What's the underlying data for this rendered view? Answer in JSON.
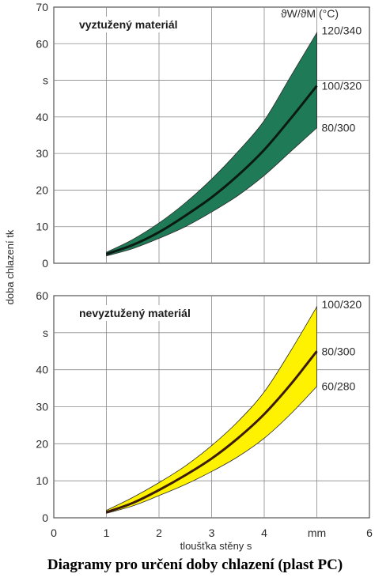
{
  "caption": "Diagramy pro určení doby chlazení (plast PC)",
  "shared": {
    "xlabel": "tloušťka stěny s",
    "ylabel": "doba chlazení tk",
    "legend_header": "ϑW/ϑM (°C)",
    "x_ticks": [
      "0",
      "1",
      "2",
      "3",
      "4",
      "mm",
      "6"
    ]
  },
  "chart_data": [
    {
      "type": "area",
      "title": "vyztužený materiál",
      "fill_color": "#1f7a57",
      "line_color": "#0b1a12",
      "xlim": [
        0,
        6
      ],
      "ylim": [
        0,
        70
      ],
      "y_ticks": [
        "0",
        "10",
        "20",
        "30",
        "40",
        "s",
        "60",
        "70"
      ],
      "x": [
        1,
        1.5,
        2,
        2.5,
        3,
        3.5,
        4,
        4.5,
        5
      ],
      "series": [
        {
          "name": "120/340",
          "values": [
            3.0,
            6.5,
            11.0,
            16.5,
            23.0,
            30.5,
            39.0,
            51.0,
            63.0
          ]
        },
        {
          "name": "100/320",
          "values": [
            2.5,
            5.0,
            8.5,
            13.0,
            18.0,
            24.0,
            31.0,
            39.5,
            48.5
          ]
        },
        {
          "name": "80/300",
          "values": [
            2.0,
            4.0,
            6.8,
            10.0,
            14.0,
            18.5,
            24.0,
            30.5,
            37.0
          ]
        }
      ]
    },
    {
      "type": "area",
      "title": "nevyztužený materiál",
      "fill_color": "#fff200",
      "line_color": "#3a1b0c",
      "xlim": [
        0,
        6
      ],
      "ylim": [
        0,
        60
      ],
      "y_ticks": [
        "0",
        "10",
        "20",
        "30",
        "40",
        "s",
        "60"
      ],
      "x": [
        1,
        1.5,
        2,
        2.5,
        3,
        3.5,
        4,
        4.5,
        5
      ],
      "series": [
        {
          "name": "100/320",
          "values": [
            2.0,
            5.5,
            9.5,
            14.0,
            19.5,
            26.0,
            34.0,
            45.0,
            57.0
          ]
        },
        {
          "name": "80/300",
          "values": [
            1.5,
            4.0,
            7.5,
            11.5,
            16.0,
            21.5,
            28.0,
            36.0,
            45.0
          ]
        },
        {
          "name": "60/280",
          "values": [
            1.2,
            3.2,
            6.0,
            9.0,
            12.5,
            16.5,
            21.5,
            28.0,
            35.5
          ]
        }
      ]
    }
  ]
}
